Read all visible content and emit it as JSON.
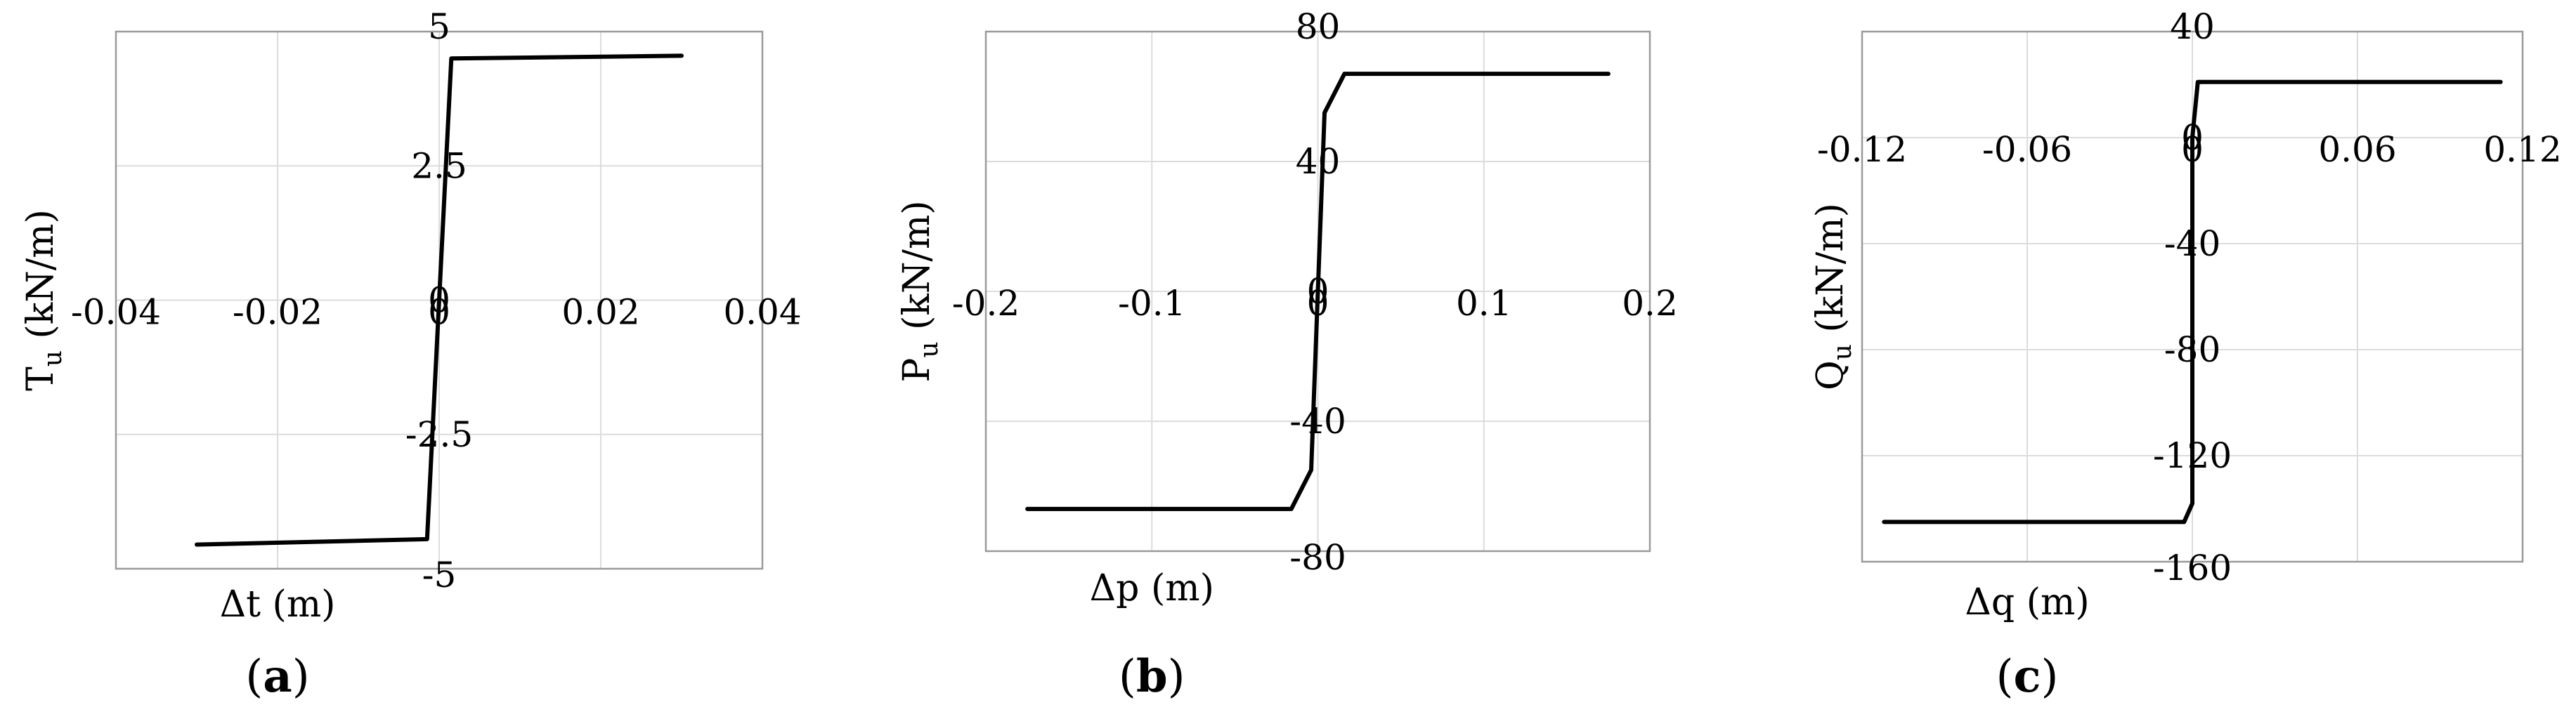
{
  "chart_data": [
    {
      "type": "line",
      "panel_label": "a",
      "xlabel": "Δt (m)",
      "ylabel_base": "T",
      "ylabel_sub": "u",
      "ylabel_unit": " (kN/m)",
      "xlim": [
        -0.04,
        0.04
      ],
      "ylim": [
        -5,
        5
      ],
      "xticks": [
        -0.04,
        -0.02,
        0,
        0.02,
        0.04
      ],
      "xtick_labels": [
        "-0.04",
        "-0.02",
        "0",
        "0.02",
        "0.04"
      ],
      "yticks": [
        -5,
        -2.5,
        0,
        2.5,
        5
      ],
      "ytick_labels": [
        "-5",
        "-2.5",
        "0",
        "2.5",
        "5"
      ],
      "grid": true,
      "series": [
        {
          "x": [
            -0.03,
            -0.0015,
            0.0015,
            0.03
          ],
          "y": [
            -4.55,
            -4.45,
            4.5,
            4.55
          ]
        }
      ]
    },
    {
      "type": "line",
      "panel_label": "b",
      "xlabel": "Δp (m)",
      "ylabel_base": "P",
      "ylabel_sub": "u",
      "ylabel_unit": " (kN/m)",
      "xlim": [
        -0.2,
        0.2
      ],
      "ylim": [
        -80,
        80
      ],
      "xticks": [
        -0.2,
        -0.1,
        0,
        0.1,
        0.2
      ],
      "xtick_labels": [
        "-0.2",
        "-0.1",
        "0",
        "0.1",
        "0.2"
      ],
      "yticks": [
        -80,
        -40,
        0,
        40,
        80
      ],
      "ytick_labels": [
        "-80",
        "-40",
        "0",
        "40",
        "80"
      ],
      "grid": true,
      "series": [
        {
          "x": [
            -0.175,
            -0.016,
            -0.004,
            0.004,
            0.016,
            0.175
          ],
          "y": [
            -67,
            -67,
            -55,
            55,
            67,
            67
          ]
        }
      ]
    },
    {
      "type": "line",
      "panel_label": "c",
      "xlabel": "Δq (m)",
      "ylabel_base": "Q",
      "ylabel_sub": "u",
      "ylabel_unit": " (kN/m)",
      "xlim": [
        -0.12,
        0.12
      ],
      "ylim": [
        -160,
        40
      ],
      "xticks": [
        -0.12,
        -0.06,
        0,
        0.06,
        0.12
      ],
      "xtick_labels": [
        "-0.12",
        "-0.06",
        "0",
        "0.06",
        "0.12"
      ],
      "yticks": [
        -160,
        -120,
        -80,
        -40,
        0,
        40
      ],
      "ytick_labels": [
        "-160",
        "-120",
        "-80",
        "-40",
        "0",
        "40"
      ],
      "grid": true,
      "series": [
        {
          "x": [
            -0.112,
            -0.003,
            0.0,
            0.0,
            0.002,
            0.112
          ],
          "y": [
            -145,
            -145,
            -138,
            0,
            21,
            21
          ]
        }
      ]
    }
  ]
}
